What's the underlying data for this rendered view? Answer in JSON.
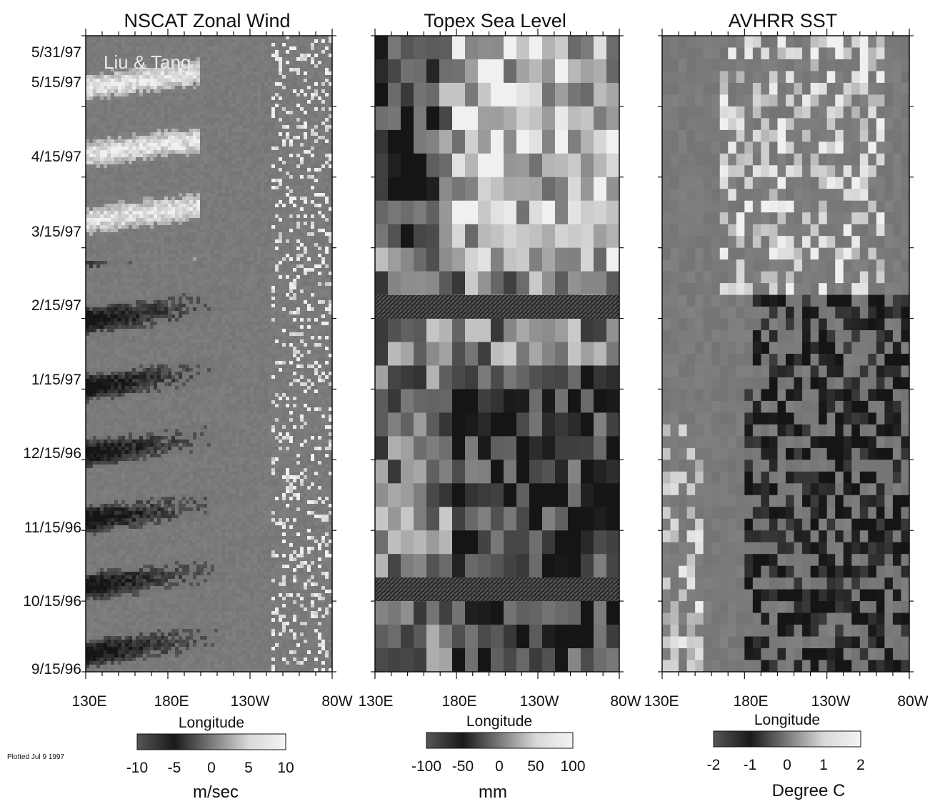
{
  "footnote": "Plotted Jul 9 1997",
  "chart_data": [
    {
      "type": "heatmap",
      "title": "NSCAT Zonal Wind",
      "annotation": "Liu & Tang",
      "xlabel": "Longitude",
      "xticks": [
        "130E",
        "180E",
        "130W",
        "80W"
      ],
      "ylabel": "",
      "yticks": [
        "5/31/97",
        "5/15/97",
        "4/15/97",
        "3/15/97",
        "2/15/97",
        "1/15/97",
        "12/15/96",
        "11/15/96",
        "10/15/96",
        "9/15/96"
      ],
      "colorbar": {
        "label": "m/sec",
        "range": [
          -10,
          10
        ],
        "ticks": [
          "-10",
          "-5",
          "0",
          "5",
          "10"
        ]
      },
      "colors": {
        "low": "#151515",
        "mid": "#7a7a7a",
        "high": "#f0f0f0"
      },
      "seed": 11
    },
    {
      "type": "heatmap",
      "title": "Topex Sea Level",
      "xlabel": "Longitude",
      "xticks": [
        "130E",
        "180E",
        "130W",
        "80W"
      ],
      "ylabel": "",
      "colorbar": {
        "label": "mm",
        "range": [
          -100,
          100
        ],
        "ticks": [
          "-100",
          "-50",
          "0",
          "50",
          "100"
        ]
      },
      "colors": {
        "low": "#151515",
        "mid": "#7a7a7a",
        "high": "#f0f0f0"
      },
      "seed": 29
    },
    {
      "type": "heatmap",
      "title": "AVHRR SST",
      "xlabel": "Longitude",
      "xticks": [
        "130E",
        "180E",
        "130W",
        "80W"
      ],
      "ylabel": "",
      "colorbar": {
        "label": "Degree C",
        "range": [
          -2,
          2
        ],
        "ticks": [
          "-2",
          "-1",
          "0",
          "1",
          "2"
        ]
      },
      "colors": {
        "low": "#151515",
        "mid": "#7a7a7a",
        "high": "#f0f0f0"
      },
      "seed": 47
    }
  ]
}
